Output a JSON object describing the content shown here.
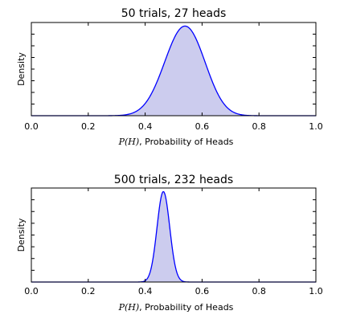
{
  "colors": {
    "curve": "#0000ff",
    "fill": "#ccccee"
  },
  "chart_data": [
    {
      "type": "area",
      "title": "50 trials, 27 heads",
      "trials": 50,
      "heads": 27,
      "xlabel_var": "P(H)",
      "xlabel_text": ", Probability of Heads",
      "ylabel": "Density",
      "xlim": [
        0.0,
        1.0
      ],
      "xticks": [
        "0.0",
        "0.2",
        "0.4",
        "0.6",
        "0.8",
        "1.0"
      ],
      "yticks_labeled": false,
      "series": [
        {
          "distribution": "beta",
          "alpha": 28,
          "beta": 24,
          "mode": 0.54
        }
      ]
    },
    {
      "type": "area",
      "title": "500 trials, 232 heads",
      "trials": 500,
      "heads": 232,
      "xlabel_var": "P(H)",
      "xlabel_text": ", Probability of Heads",
      "ylabel": "Density",
      "xlim": [
        0.0,
        1.0
      ],
      "xticks": [
        "0.0",
        "0.2",
        "0.4",
        "0.6",
        "0.8",
        "1.0"
      ],
      "yticks_labeled": false,
      "series": [
        {
          "distribution": "beta",
          "alpha": 233,
          "beta": 269,
          "mode": 0.464
        }
      ]
    }
  ]
}
